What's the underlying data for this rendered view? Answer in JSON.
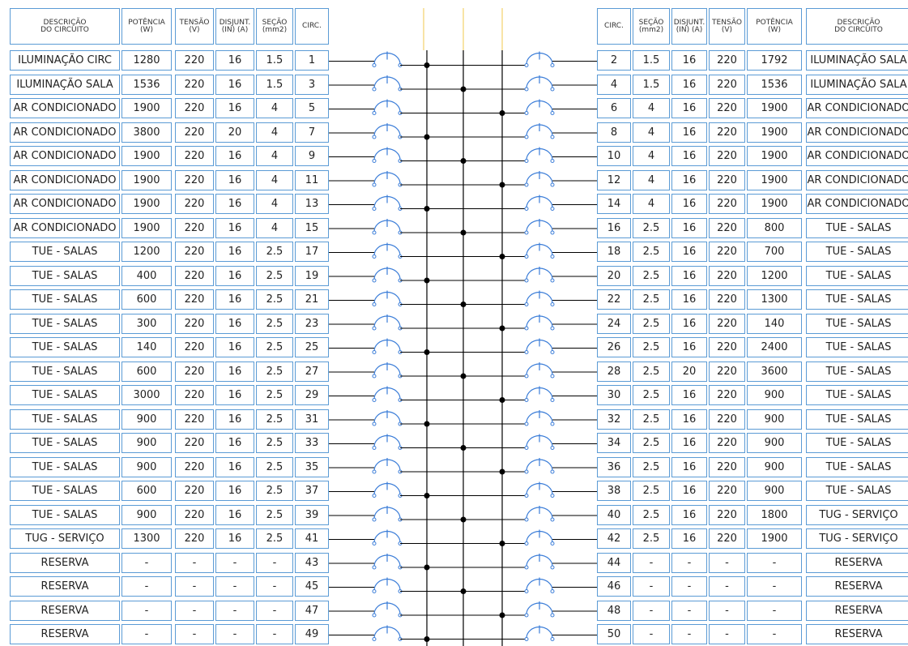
{
  "left": {
    "header": [
      "DESCRIÇÃO\nDO CIRCUITO",
      "POTÊNCIA\n(W)",
      "TENSÃO\n(V)",
      "DISJUNT.\n(IN) (A)",
      "SEÇÃO\n(mm2)",
      "CIRC."
    ],
    "rows": [
      [
        "ILUMINAÇÃO CIRC",
        "1280",
        "220",
        "16",
        "1.5",
        "1"
      ],
      [
        "ILUMINAÇÃO SALA",
        "1536",
        "220",
        "16",
        "1.5",
        "3"
      ],
      [
        "AR CONDICIONADO",
        "1900",
        "220",
        "16",
        "4",
        "5"
      ],
      [
        "AR CONDICIONADO",
        "3800",
        "220",
        "20",
        "4",
        "7"
      ],
      [
        "AR CONDICIONADO",
        "1900",
        "220",
        "16",
        "4",
        "9"
      ],
      [
        "AR CONDICIONADO",
        "1900",
        "220",
        "16",
        "4",
        "11"
      ],
      [
        "AR CONDICIONADO",
        "1900",
        "220",
        "16",
        "4",
        "13"
      ],
      [
        "AR CONDICIONADO",
        "1900",
        "220",
        "16",
        "4",
        "15"
      ],
      [
        "TUE - SALAS",
        "1200",
        "220",
        "16",
        "2.5",
        "17"
      ],
      [
        "TUE - SALAS",
        "400",
        "220",
        "16",
        "2.5",
        "19"
      ],
      [
        "TUE - SALAS",
        "600",
        "220",
        "16",
        "2.5",
        "21"
      ],
      [
        "TUE - SALAS",
        "300",
        "220",
        "16",
        "2.5",
        "23"
      ],
      [
        "TUE - SALAS",
        "140",
        "220",
        "16",
        "2.5",
        "25"
      ],
      [
        "TUE - SALAS",
        "600",
        "220",
        "16",
        "2.5",
        "27"
      ],
      [
        "TUE - SALAS",
        "3000",
        "220",
        "16",
        "2.5",
        "29"
      ],
      [
        "TUE - SALAS",
        "900",
        "220",
        "16",
        "2.5",
        "31"
      ],
      [
        "TUE - SALAS",
        "900",
        "220",
        "16",
        "2.5",
        "33"
      ],
      [
        "TUE - SALAS",
        "900",
        "220",
        "16",
        "2.5",
        "35"
      ],
      [
        "TUE - SALAS",
        "600",
        "220",
        "16",
        "2.5",
        "37"
      ],
      [
        "TUE - SALAS",
        "900",
        "220",
        "16",
        "2.5",
        "39"
      ],
      [
        "TUG - SERVIÇO",
        "1300",
        "220",
        "16",
        "2.5",
        "41"
      ],
      [
        "RESERVA",
        "-",
        "-",
        "-",
        "-",
        "43"
      ],
      [
        "RESERVA",
        "-",
        "-",
        "-",
        "-",
        "45"
      ],
      [
        "RESERVA",
        "-",
        "-",
        "-",
        "-",
        "47"
      ],
      [
        "RESERVA",
        "-",
        "-",
        "-",
        "-",
        "49"
      ]
    ]
  },
  "right": {
    "header": [
      "CIRC.",
      "SEÇÃO\n(mm2)",
      "DISJUNT.\n(IN) (A)",
      "TENSÃO\n(V)",
      "POTÊNCIA\n(W)",
      "DESCRIÇÃO\nDO CIRCUITO"
    ],
    "rows": [
      [
        "2",
        "1.5",
        "16",
        "220",
        "1792",
        "ILUMINAÇÃO SALA"
      ],
      [
        "4",
        "1.5",
        "16",
        "220",
        "1536",
        "ILUMINAÇÃO SALA"
      ],
      [
        "6",
        "4",
        "16",
        "220",
        "1900",
        "AR CONDICIONADO"
      ],
      [
        "8",
        "4",
        "16",
        "220",
        "1900",
        "AR CONDICIONADO"
      ],
      [
        "10",
        "4",
        "16",
        "220",
        "1900",
        "AR CONDICIONADO"
      ],
      [
        "12",
        "4",
        "16",
        "220",
        "1900",
        "AR CONDICIONADO"
      ],
      [
        "14",
        "4",
        "16",
        "220",
        "1900",
        "AR CONDICIONADO"
      ],
      [
        "16",
        "2.5",
        "16",
        "220",
        "800",
        "TUE - SALAS"
      ],
      [
        "18",
        "2.5",
        "16",
        "220",
        "700",
        "TUE - SALAS"
      ],
      [
        "20",
        "2.5",
        "16",
        "220",
        "1200",
        "TUE - SALAS"
      ],
      [
        "22",
        "2.5",
        "16",
        "220",
        "1300",
        "TUE - SALAS"
      ],
      [
        "24",
        "2.5",
        "16",
        "220",
        "140",
        "TUE - SALAS"
      ],
      [
        "26",
        "2.5",
        "16",
        "220",
        "2400",
        "TUE - SALAS"
      ],
      [
        "28",
        "2.5",
        "20",
        "220",
        "3600",
        "TUE - SALAS"
      ],
      [
        "30",
        "2.5",
        "16",
        "220",
        "900",
        "TUE - SALAS"
      ],
      [
        "32",
        "2.5",
        "16",
        "220",
        "900",
        "TUE - SALAS"
      ],
      [
        "34",
        "2.5",
        "16",
        "220",
        "900",
        "TUE - SALAS"
      ],
      [
        "36",
        "2.5",
        "16",
        "220",
        "900",
        "TUE - SALAS"
      ],
      [
        "38",
        "2.5",
        "16",
        "220",
        "900",
        "TUE - SALAS"
      ],
      [
        "40",
        "2.5",
        "16",
        "220",
        "1800",
        "TUG - SERVIÇO"
      ],
      [
        "42",
        "2.5",
        "16",
        "220",
        "1900",
        "TUG - SERVIÇO"
      ],
      [
        "44",
        "-",
        "-",
        "-",
        "-",
        "RESERVA"
      ],
      [
        "46",
        "-",
        "-",
        "-",
        "-",
        "RESERVA"
      ],
      [
        "48",
        "-",
        "-",
        "-",
        "-",
        "RESERVA"
      ],
      [
        "50",
        "-",
        "-",
        "-",
        "-",
        "RESERVA"
      ]
    ]
  }
}
